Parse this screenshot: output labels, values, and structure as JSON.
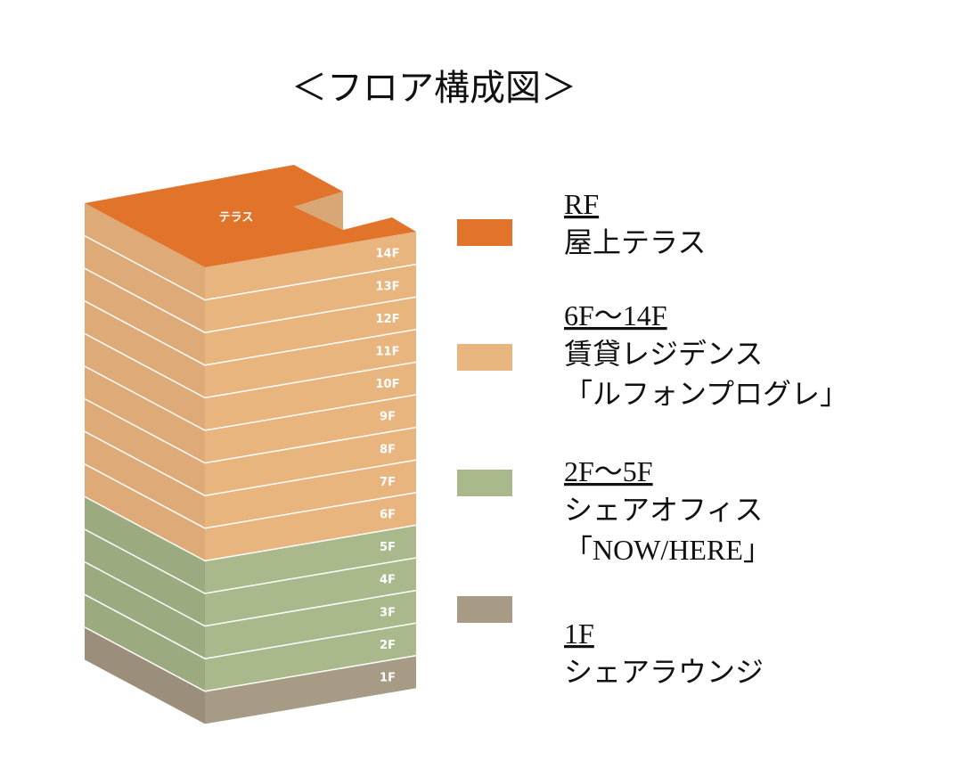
{
  "title": "＜フロア構成図＞",
  "building": {
    "roof_label": "テラス",
    "floors": [
      "14F",
      "13F",
      "12F",
      "11F",
      "10F",
      "9F",
      "8F",
      "7F",
      "6F",
      "5F",
      "4F",
      "3F",
      "2F",
      "1F"
    ]
  },
  "legend": [
    {
      "floor": "RF",
      "lines": [
        "屋上テラス"
      ]
    },
    {
      "floor": "6F～14F",
      "lines": [
        "賃貸レジデンス",
        "「ルフォンプログレ」"
      ]
    },
    {
      "floor": "2F～5F",
      "lines": [
        "シェアオフィス",
        "「NOW/HERE」"
      ]
    },
    {
      "floor": "1F",
      "lines": [
        "シェアラウンジ"
      ]
    }
  ]
}
